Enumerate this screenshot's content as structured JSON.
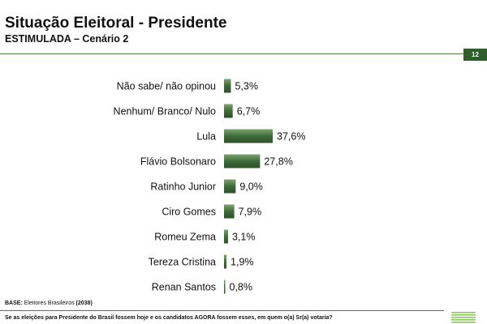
{
  "header": {
    "title": "Situação Eleitoral - Presidente",
    "subtitle": "ESTIMULADA – Cenário 2",
    "page_number": "12"
  },
  "footer": {
    "base_label": "BASE:",
    "base_text": "Eleitores Brasileiros",
    "base_count": "(2038)",
    "question": "Se as eleições para Presidente do Brasil fossem hoje e os candidatos AGORA fossem esses, em quem o(a) Sr(a) votaria?"
  },
  "colors": {
    "bar_fill": "#3f6b3a",
    "accent": "#4e7a46",
    "badge": "#2f5e2c",
    "logo_stripe": "#8fc85a"
  },
  "logo": {
    "icon": "stacked-stripes-logo-icon"
  },
  "chart_data": {
    "type": "bar",
    "orientation": "horizontal",
    "categories": [
      "Não sabe/ não opinou",
      "Nenhum/ Branco/ Nulo",
      "Lula",
      "Flávio Bolsonaro",
      "Ratinho Junior",
      "Ciro Gomes",
      "Romeu Zema",
      "Tereza Cristina",
      "Renan Santos"
    ],
    "values": [
      5.3,
      6.7,
      37.6,
      27.8,
      9.0,
      7.9,
      3.1,
      1.9,
      0.8
    ],
    "value_labels": [
      "5,3%",
      "6,7%",
      "37,6%",
      "27,8%",
      "9,0%",
      "7,9%",
      "3,1%",
      "1,9%",
      "0,8%"
    ],
    "title": "",
    "xlabel": "",
    "ylabel": "",
    "xlim": [
      0,
      37.6
    ],
    "grid": false,
    "legend": "none"
  }
}
